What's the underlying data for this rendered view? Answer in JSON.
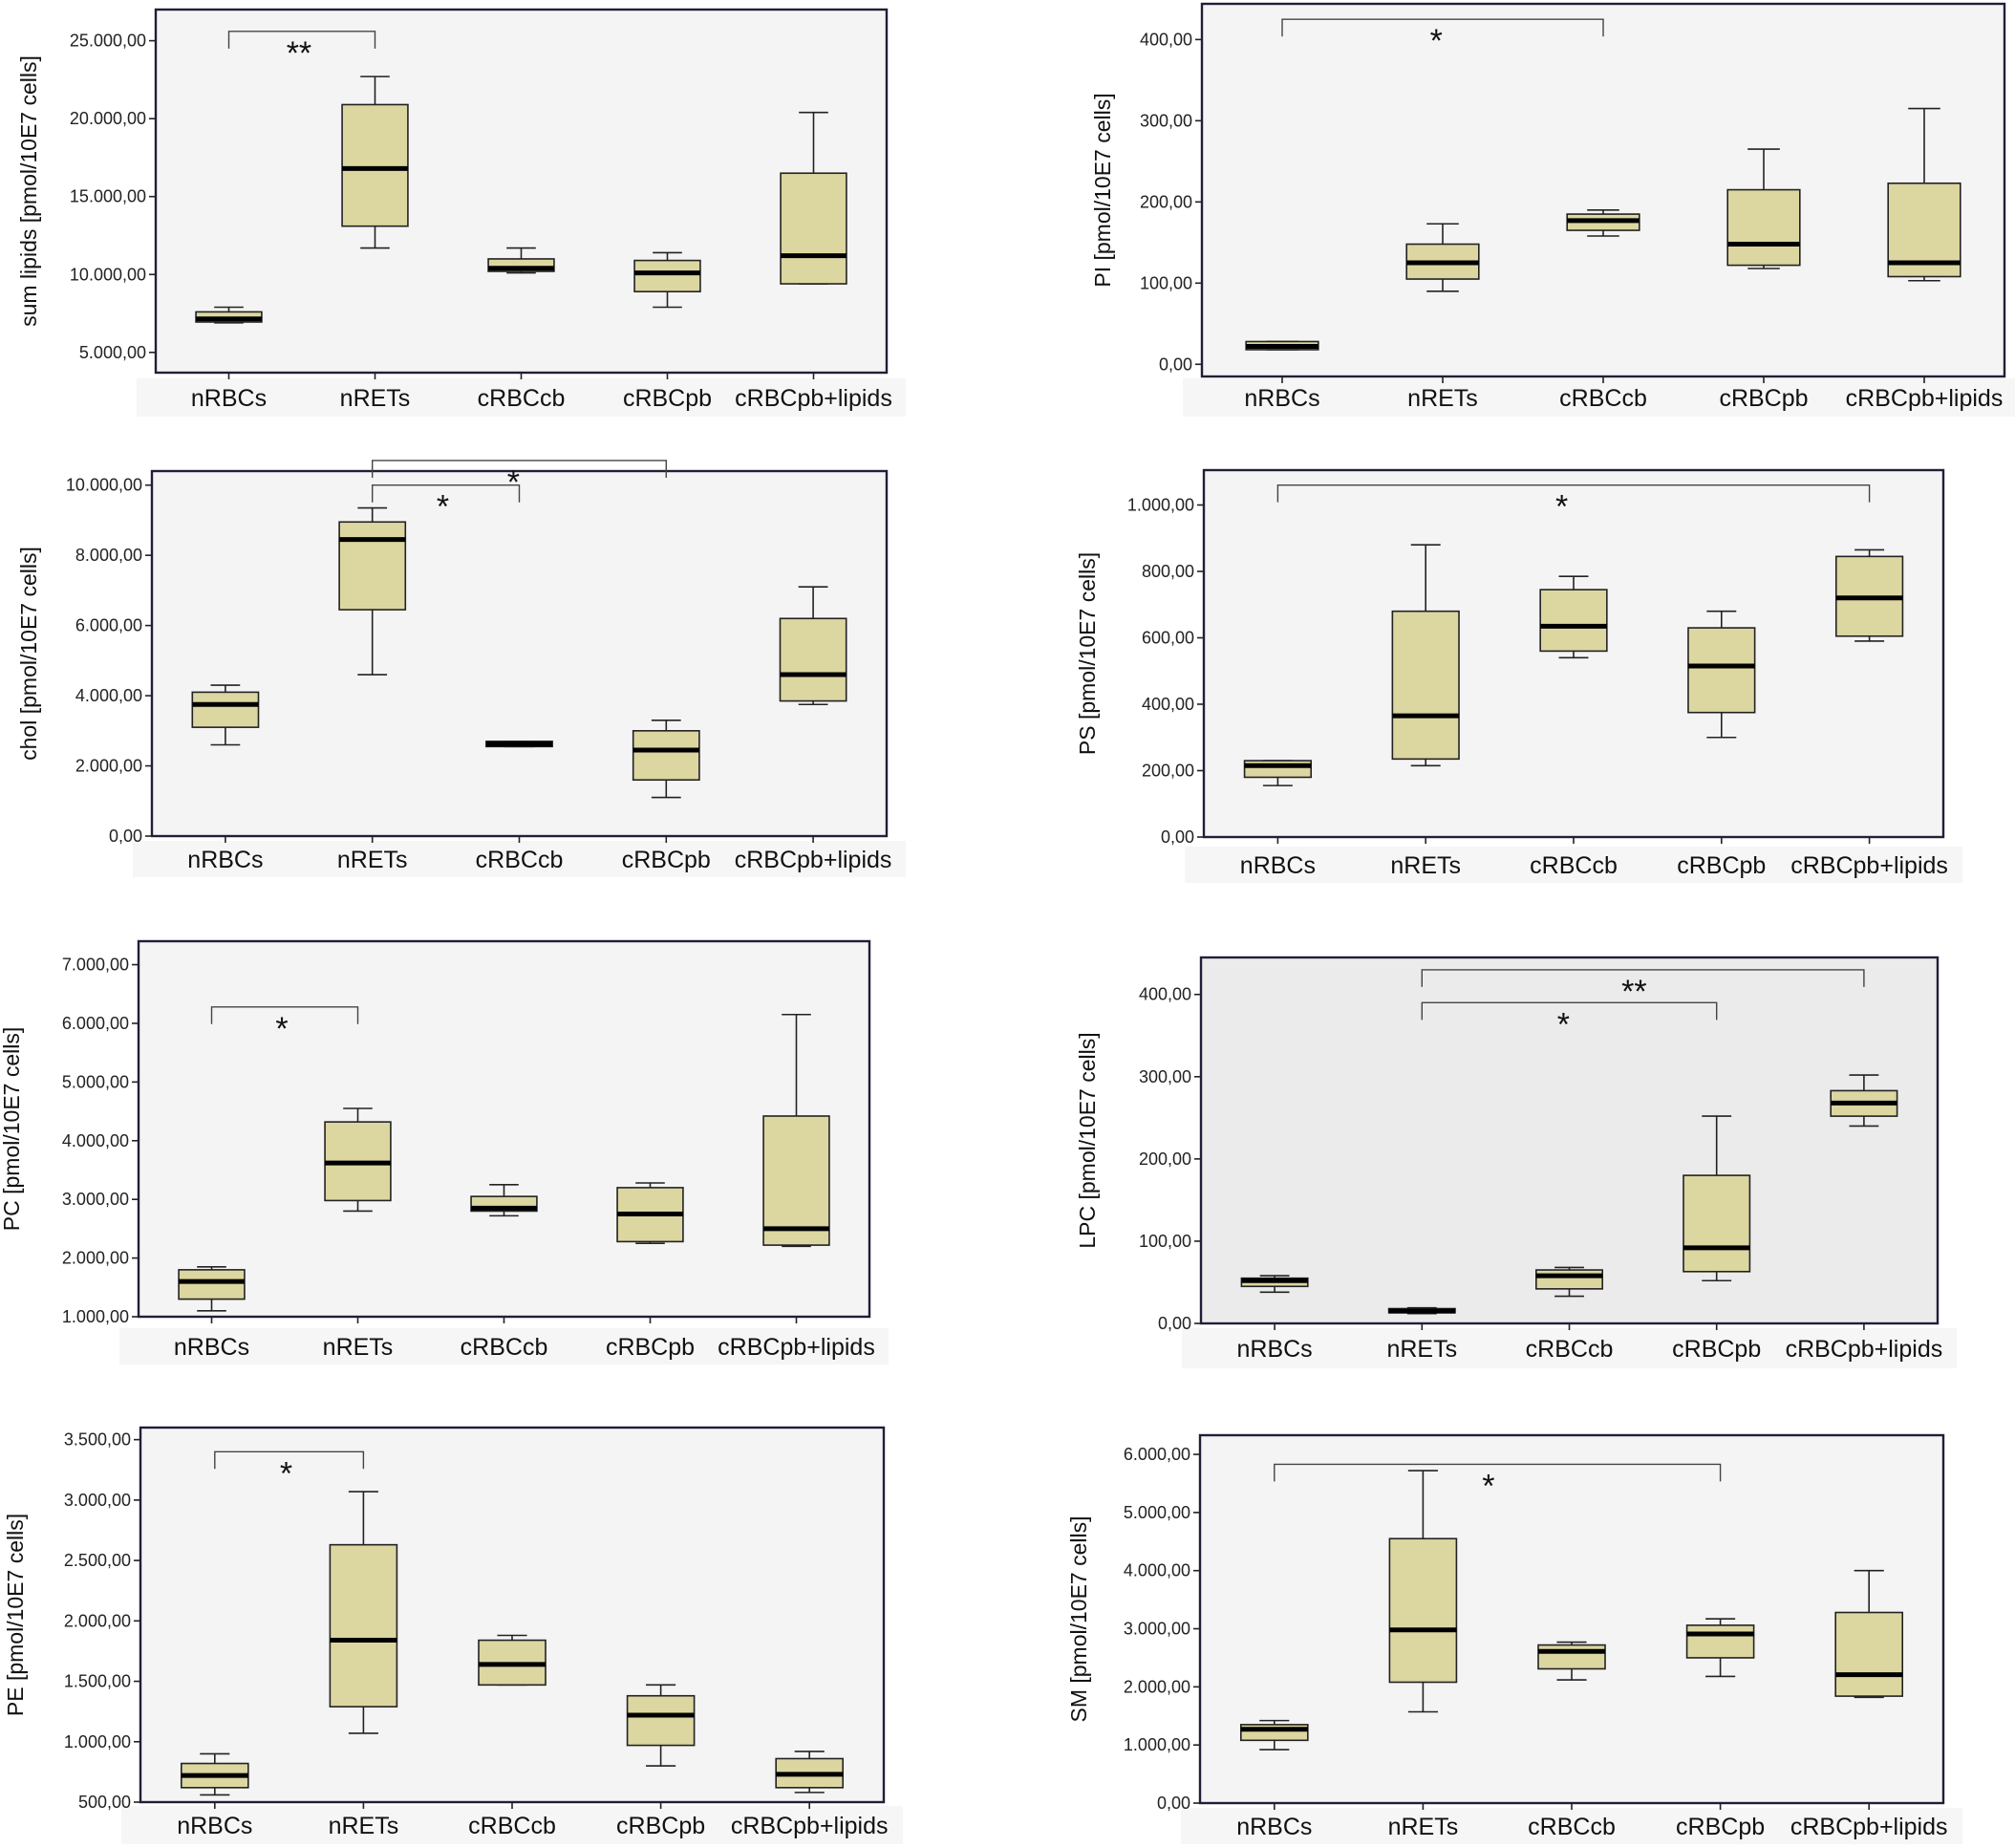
{
  "colors": {
    "box_fill": "#dcd6a1",
    "plot_bg": "#f4f4f4",
    "frame": "#1f1f38"
  },
  "chart_data": [
    {
      "type": "box",
      "ylabel": "sum lipids [pmol/10E7 cells]",
      "ylim": [
        3700,
        27000
      ],
      "yticks": [
        5000,
        10000,
        15000,
        20000,
        25000
      ],
      "ytick_labels": [
        "5.000,00",
        "10.000,00",
        "15.000,00",
        "20.000,00",
        "25.000,00"
      ],
      "categories": [
        "nRBCs",
        "nRETs",
        "cRBCcb",
        "cRBCpb",
        "cRBCpb+lipids"
      ],
      "boxes": [
        {
          "min": 6900,
          "q1": 6950,
          "median": 7150,
          "q3": 7600,
          "max": 7900
        },
        {
          "min": 11700,
          "q1": 13100,
          "median": 16800,
          "q3": 20900,
          "max": 22700
        },
        {
          "min": 10100,
          "q1": 10200,
          "median": 10400,
          "q3": 11000,
          "max": 11700
        },
        {
          "min": 7900,
          "q1": 8900,
          "median": 10100,
          "q3": 10900,
          "max": 11400
        },
        {
          "min": 9400,
          "q1": 9400,
          "median": 11200,
          "q3": 16500,
          "max": 20400
        }
      ],
      "significance": [
        {
          "from": 0,
          "to": 1,
          "label": "**",
          "y": 25600
        }
      ]
    },
    {
      "type": "box",
      "ylabel": "PI  [pmol/10E7 cells]",
      "ylim": [
        -15,
        444
      ],
      "yticks": [
        0,
        100,
        200,
        300,
        400
      ],
      "ytick_labels": [
        "0,00",
        "100,00",
        "200,00",
        "300,00",
        "400,00"
      ],
      "categories": [
        "nRBCs",
        "nRETs",
        "cRBCcb",
        "cRBCpb",
        "cRBCpb+lipids"
      ],
      "boxes": [
        {
          "min": 18,
          "q1": 18,
          "median": 22,
          "q3": 28,
          "max": 28
        },
        {
          "min": 90,
          "q1": 105,
          "median": 125,
          "q3": 148,
          "max": 173
        },
        {
          "min": 158,
          "q1": 165,
          "median": 177,
          "q3": 185,
          "max": 190
        },
        {
          "min": 118,
          "q1": 122,
          "median": 148,
          "q3": 215,
          "max": 265
        },
        {
          "min": 103,
          "q1": 108,
          "median": 125,
          "q3": 223,
          "max": 315
        }
      ],
      "significance": [
        {
          "from": 0,
          "to": 2,
          "label": "*",
          "y": 425
        }
      ]
    },
    {
      "type": "box",
      "ylabel": "chol  [pmol/10E7 cells]",
      "ylim": [
        0,
        10400
      ],
      "yticks": [
        0,
        2000,
        4000,
        6000,
        8000,
        10000
      ],
      "ytick_labels": [
        "0,00",
        "2.000,00",
        "4.000,00",
        "6.000,00",
        "8.000,00",
        "10.000,00"
      ],
      "categories": [
        "nRBCs",
        "nRETs",
        "cRBCcb",
        "cRBCpb",
        "cRBCpb+lipids"
      ],
      "boxes": [
        {
          "min": 2600,
          "q1": 3100,
          "median": 3750,
          "q3": 4100,
          "max": 4300
        },
        {
          "min": 4600,
          "q1": 6450,
          "median": 8450,
          "q3": 8950,
          "max": 9350
        },
        {
          "min": 2550,
          "q1": 2550,
          "median": 2620,
          "q3": 2700,
          "max": 2700
        },
        {
          "min": 1100,
          "q1": 1600,
          "median": 2450,
          "q3": 3000,
          "max": 3300
        },
        {
          "min": 3750,
          "q1": 3850,
          "median": 4600,
          "q3": 6200,
          "max": 7100
        }
      ],
      "significance": [
        {
          "from": 1,
          "to": 2,
          "label": "*",
          "y": 10000
        },
        {
          "from": 1,
          "to": 3,
          "label": "*",
          "y": 10700
        }
      ]
    },
    {
      "type": "box",
      "ylabel": "PS  [pmol/10E7 cells]",
      "ylim": [
        0,
        1105
      ],
      "yticks": [
        0,
        200,
        400,
        600,
        800,
        1000
      ],
      "ytick_labels": [
        "0,00",
        "200,00",
        "400,00",
        "600,00",
        "800,00",
        "1.000,00"
      ],
      "categories": [
        "nRBCs",
        "nRETs",
        "cRBCcb",
        "cRBCpb",
        "cRBCpb+lipids"
      ],
      "boxes": [
        {
          "min": 155,
          "q1": 180,
          "median": 215,
          "q3": 230,
          "max": 230
        },
        {
          "min": 215,
          "q1": 235,
          "median": 365,
          "q3": 680,
          "max": 880
        },
        {
          "min": 540,
          "q1": 560,
          "median": 635,
          "q3": 745,
          "max": 785
        },
        {
          "min": 300,
          "q1": 375,
          "median": 515,
          "q3": 630,
          "max": 680
        },
        {
          "min": 590,
          "q1": 605,
          "median": 720,
          "q3": 845,
          "max": 865
        }
      ],
      "significance": [
        {
          "from": 0,
          "to": 4,
          "label": "*",
          "y": 1060
        }
      ]
    },
    {
      "type": "box",
      "ylabel": "PC [pmol/10E7 cells]",
      "ylim": [
        1000,
        7400
      ],
      "yticks": [
        1000,
        2000,
        3000,
        4000,
        5000,
        6000,
        7000
      ],
      "ytick_labels": [
        "1.000,00",
        "2.000,00",
        "3.000,00",
        "4.000,00",
        "5.000,00",
        "6.000,00",
        "7.000,00"
      ],
      "categories": [
        "nRBCs",
        "nRETs",
        "cRBCcb",
        "cRBCpb",
        "cRBCpb+lipids"
      ],
      "boxes": [
        {
          "min": 1100,
          "q1": 1300,
          "median": 1600,
          "q3": 1800,
          "max": 1850
        },
        {
          "min": 2800,
          "q1": 2980,
          "median": 3620,
          "q3": 4320,
          "max": 4550
        },
        {
          "min": 2720,
          "q1": 2800,
          "median": 2850,
          "q3": 3050,
          "max": 3250
        },
        {
          "min": 2250,
          "q1": 2280,
          "median": 2750,
          "q3": 3200,
          "max": 3280
        },
        {
          "min": 2200,
          "q1": 2220,
          "median": 2500,
          "q3": 4420,
          "max": 6150
        }
      ],
      "significance": [
        {
          "from": 0,
          "to": 1,
          "label": "*",
          "y": 6280
        }
      ]
    },
    {
      "type": "box",
      "ylabel": "LPC [pmol/10E7 cells]",
      "ylim": [
        0,
        445
      ],
      "yticks": [
        0,
        100,
        200,
        300,
        400
      ],
      "ytick_labels": [
        "0,00",
        "100,00",
        "200,00",
        "300,00",
        "400,00"
      ],
      "categories": [
        "nRBCs",
        "nRETs",
        "cRBCcb",
        "cRBCpb",
        "cRBCpb+lipids"
      ],
      "boxes": [
        {
          "min": 38,
          "q1": 45,
          "median": 52,
          "q3": 55,
          "max": 58
        },
        {
          "min": 12,
          "q1": 13,
          "median": 15,
          "q3": 18,
          "max": 19
        },
        {
          "min": 33,
          "q1": 42,
          "median": 58,
          "q3": 65,
          "max": 68
        },
        {
          "min": 52,
          "q1": 63,
          "median": 92,
          "q3": 180,
          "max": 252
        },
        {
          "min": 240,
          "q1": 252,
          "median": 268,
          "q3": 283,
          "max": 302
        }
      ],
      "significance": [
        {
          "from": 1,
          "to": 3,
          "label": "*",
          "y": 390
        },
        {
          "from": 1,
          "to": 4,
          "label": "**",
          "y": 430
        }
      ]
    },
    {
      "type": "box",
      "ylabel": "PE  [pmol/10E7 cells]",
      "ylim": [
        500,
        3600
      ],
      "yticks": [
        500,
        1000,
        1500,
        2000,
        2500,
        3000,
        3500
      ],
      "ytick_labels": [
        "500,00",
        "1.000,00",
        "1.500,00",
        "2.000,00",
        "2.500,00",
        "3.000,00",
        "3.500,00"
      ],
      "categories": [
        "nRBCs",
        "nRETs",
        "cRBCcb",
        "cRBCpb",
        "cRBCpb+lipids"
      ],
      "boxes": [
        {
          "min": 560,
          "q1": 620,
          "median": 720,
          "q3": 820,
          "max": 900
        },
        {
          "min": 1070,
          "q1": 1290,
          "median": 1840,
          "q3": 2630,
          "max": 3070
        },
        {
          "min": 1470,
          "q1": 1470,
          "median": 1640,
          "q3": 1840,
          "max": 1880
        },
        {
          "min": 800,
          "q1": 970,
          "median": 1220,
          "q3": 1380,
          "max": 1470
        },
        {
          "min": 580,
          "q1": 620,
          "median": 730,
          "q3": 860,
          "max": 920
        }
      ],
      "significance": [
        {
          "from": 0,
          "to": 1,
          "label": "*",
          "y": 3400
        }
      ]
    },
    {
      "type": "box",
      "ylabel": "SM [pmol/10E7 cells]",
      "ylim": [
        0,
        6330
      ],
      "yticks": [
        0,
        1000,
        2000,
        3000,
        4000,
        5000,
        6000
      ],
      "ytick_labels": [
        "0,00",
        "1.000,00",
        "2.000,00",
        "3.000,00",
        "4.000,00",
        "5.000,00",
        "6.000,00"
      ],
      "categories": [
        "nRBCs",
        "nRETs",
        "cRBCcb",
        "cRBCpb",
        "cRBCpb+lipids"
      ],
      "boxes": [
        {
          "min": 920,
          "q1": 1080,
          "median": 1270,
          "q3": 1350,
          "max": 1420
        },
        {
          "min": 1570,
          "q1": 2080,
          "median": 2980,
          "q3": 4550,
          "max": 5720
        },
        {
          "min": 2120,
          "q1": 2310,
          "median": 2610,
          "q3": 2720,
          "max": 2770
        },
        {
          "min": 2180,
          "q1": 2500,
          "median": 2910,
          "q3": 3060,
          "max": 3170
        },
        {
          "min": 1820,
          "q1": 1840,
          "median": 2210,
          "q3": 3280,
          "max": 4000
        }
      ],
      "significance": [
        {
          "from": 0,
          "to": 3,
          "label": "*",
          "y": 5830
        }
      ]
    }
  ]
}
